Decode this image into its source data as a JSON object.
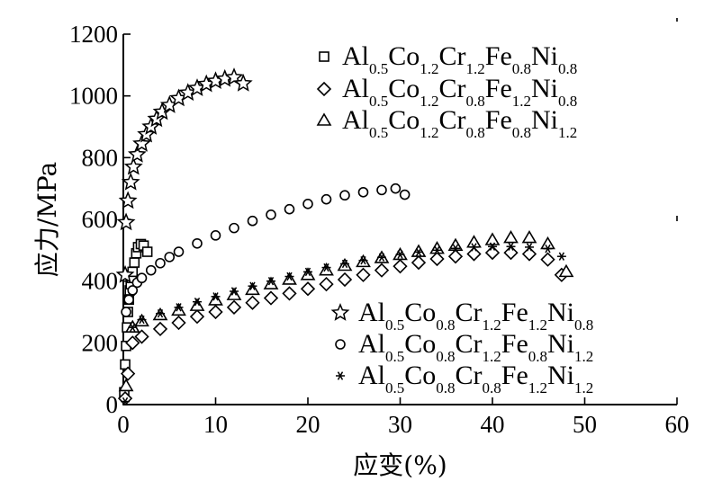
{
  "chart_data": {
    "type": "scatter",
    "xlabel": "应变(%)",
    "ylabel": "应力/MPa",
    "xlim": [
      0,
      60
    ],
    "ylim": [
      0,
      1200
    ],
    "xticks": [
      0,
      10,
      20,
      30,
      40,
      50,
      60
    ],
    "yticks": [
      0,
      200,
      400,
      600,
      800,
      1000,
      1200
    ],
    "grid": false,
    "legend_groups": [
      {
        "placement": "top-right",
        "series_indices": [
          0,
          1,
          2
        ]
      },
      {
        "placement": "bottom-right",
        "series_indices": [
          3,
          4,
          5
        ]
      }
    ],
    "series": [
      {
        "name": "Al0.5Co1.2Cr1.2Fe0.8Ni0.8",
        "label_parts": [
          [
            "Al",
            "0.5"
          ],
          [
            "Co",
            "1.2"
          ],
          [
            "Cr",
            "1.2"
          ],
          [
            "Fe",
            "0.8"
          ],
          [
            "Ni",
            "0.8"
          ]
        ],
        "marker": "square",
        "x": [
          0.1,
          0.2,
          0.3,
          0.4,
          0.5,
          0.6,
          0.7,
          0.8,
          0.9,
          1.0,
          1.2,
          1.4,
          1.6,
          1.9,
          2.2,
          2.6
        ],
        "y": [
          40,
          130,
          190,
          250,
          300,
          340,
          370,
          390,
          410,
          430,
          460,
          490,
          510,
          520,
          515,
          495
        ]
      },
      {
        "name": "Al0.5Co1.2Cr0.8Fe1.2Ni0.8",
        "label_parts": [
          [
            "Al",
            "0.5"
          ],
          [
            "Co",
            "1.2"
          ],
          [
            "Cr",
            "0.8"
          ],
          [
            "Fe",
            "1.2"
          ],
          [
            "Ni",
            "0.8"
          ]
        ],
        "marker": "diamond",
        "x": [
          0.2,
          0.5,
          1.0,
          2,
          4,
          6,
          8,
          10,
          12,
          14,
          16,
          18,
          20,
          22,
          24,
          26,
          28,
          30,
          32,
          34,
          36,
          38,
          40,
          42,
          44,
          46,
          47.5
        ],
        "y": [
          20,
          100,
          200,
          220,
          245,
          265,
          285,
          300,
          315,
          330,
          345,
          360,
          375,
          390,
          405,
          420,
          435,
          448,
          460,
          472,
          480,
          488,
          492,
          492,
          488,
          470,
          420
        ]
      },
      {
        "name": "Al0.5Co1.2Cr0.8Fe0.8Ni1.2",
        "label_parts": [
          [
            "Al",
            "0.5"
          ],
          [
            "Co",
            "1.2"
          ],
          [
            "Cr",
            "0.8"
          ],
          [
            "Fe",
            "0.8"
          ],
          [
            "Ni",
            "1.2"
          ]
        ],
        "marker": "triangle",
        "x": [
          0.3,
          1.0,
          2,
          4,
          6,
          8,
          10,
          12,
          14,
          16,
          18,
          20,
          22,
          24,
          26,
          28,
          30,
          32,
          34,
          36,
          38,
          40,
          42,
          44,
          46,
          48
        ],
        "y": [
          60,
          250,
          270,
          290,
          305,
          320,
          338,
          355,
          372,
          390,
          405,
          420,
          435,
          450,
          462,
          475,
          485,
          495,
          505,
          515,
          525,
          533,
          540,
          540,
          520,
          430
        ]
      },
      {
        "name": "Al0.5Co0.8Cr1.2Fe1.2Ni0.8",
        "label_parts": [
          [
            "Al",
            "0.5"
          ],
          [
            "Co",
            "0.8"
          ],
          [
            "Cr",
            "1.2"
          ],
          [
            "Fe",
            "1.2"
          ],
          [
            "Ni",
            "0.8"
          ]
        ],
        "marker": "star",
        "x": [
          0.2,
          0.3,
          0.5,
          0.8,
          1.1,
          1.5,
          2,
          2.5,
          3,
          3.6,
          4.2,
          5,
          6,
          7,
          8,
          9,
          10,
          11,
          12,
          13
        ],
        "y": [
          420,
          590,
          660,
          720,
          770,
          810,
          845,
          875,
          900,
          925,
          948,
          970,
          992,
          1010,
          1025,
          1038,
          1048,
          1055,
          1060,
          1040
        ]
      },
      {
        "name": "Al0.5Co0.8Cr1.2Fe0.8Ni1.2",
        "label_parts": [
          [
            "Al",
            "0.5"
          ],
          [
            "Co",
            "0.8"
          ],
          [
            "Cr",
            "1.2"
          ],
          [
            "Fe",
            "0.8"
          ],
          [
            "Ni",
            "1.2"
          ]
        ],
        "marker": "circle",
        "x": [
          0.3,
          0.6,
          1.0,
          1.5,
          2,
          3,
          4,
          5,
          6,
          8,
          10,
          12,
          14,
          16,
          18,
          20,
          22,
          24,
          26,
          28,
          29.5,
          30.5
        ],
        "y": [
          300,
          340,
          370,
          395,
          410,
          435,
          458,
          478,
          495,
          522,
          548,
          572,
          595,
          615,
          633,
          650,
          665,
          678,
          688,
          695,
          700,
          680
        ]
      },
      {
        "name": "Al0.5Co0.8Cr0.8Fe1.2Ni1.2",
        "label_parts": [
          [
            "Al",
            "0.5"
          ],
          [
            "Co",
            "0.8"
          ],
          [
            "Cr",
            "0.8"
          ],
          [
            "Fe",
            "1.2"
          ],
          [
            "Ni",
            "1.2"
          ]
        ],
        "marker": "asterisk",
        "x": [
          0.2,
          1.0,
          2,
          4,
          6,
          8,
          10,
          12,
          14,
          16,
          18,
          20,
          22,
          24,
          26,
          28,
          30,
          32,
          34,
          36,
          38,
          40,
          42,
          44,
          46,
          47.5
        ],
        "y": [
          10,
          250,
          275,
          295,
          315,
          333,
          350,
          367,
          384,
          400,
          415,
          430,
          444,
          456,
          467,
          477,
          486,
          494,
          500,
          506,
          510,
          512,
          512,
          510,
          505,
          480
        ]
      }
    ]
  }
}
